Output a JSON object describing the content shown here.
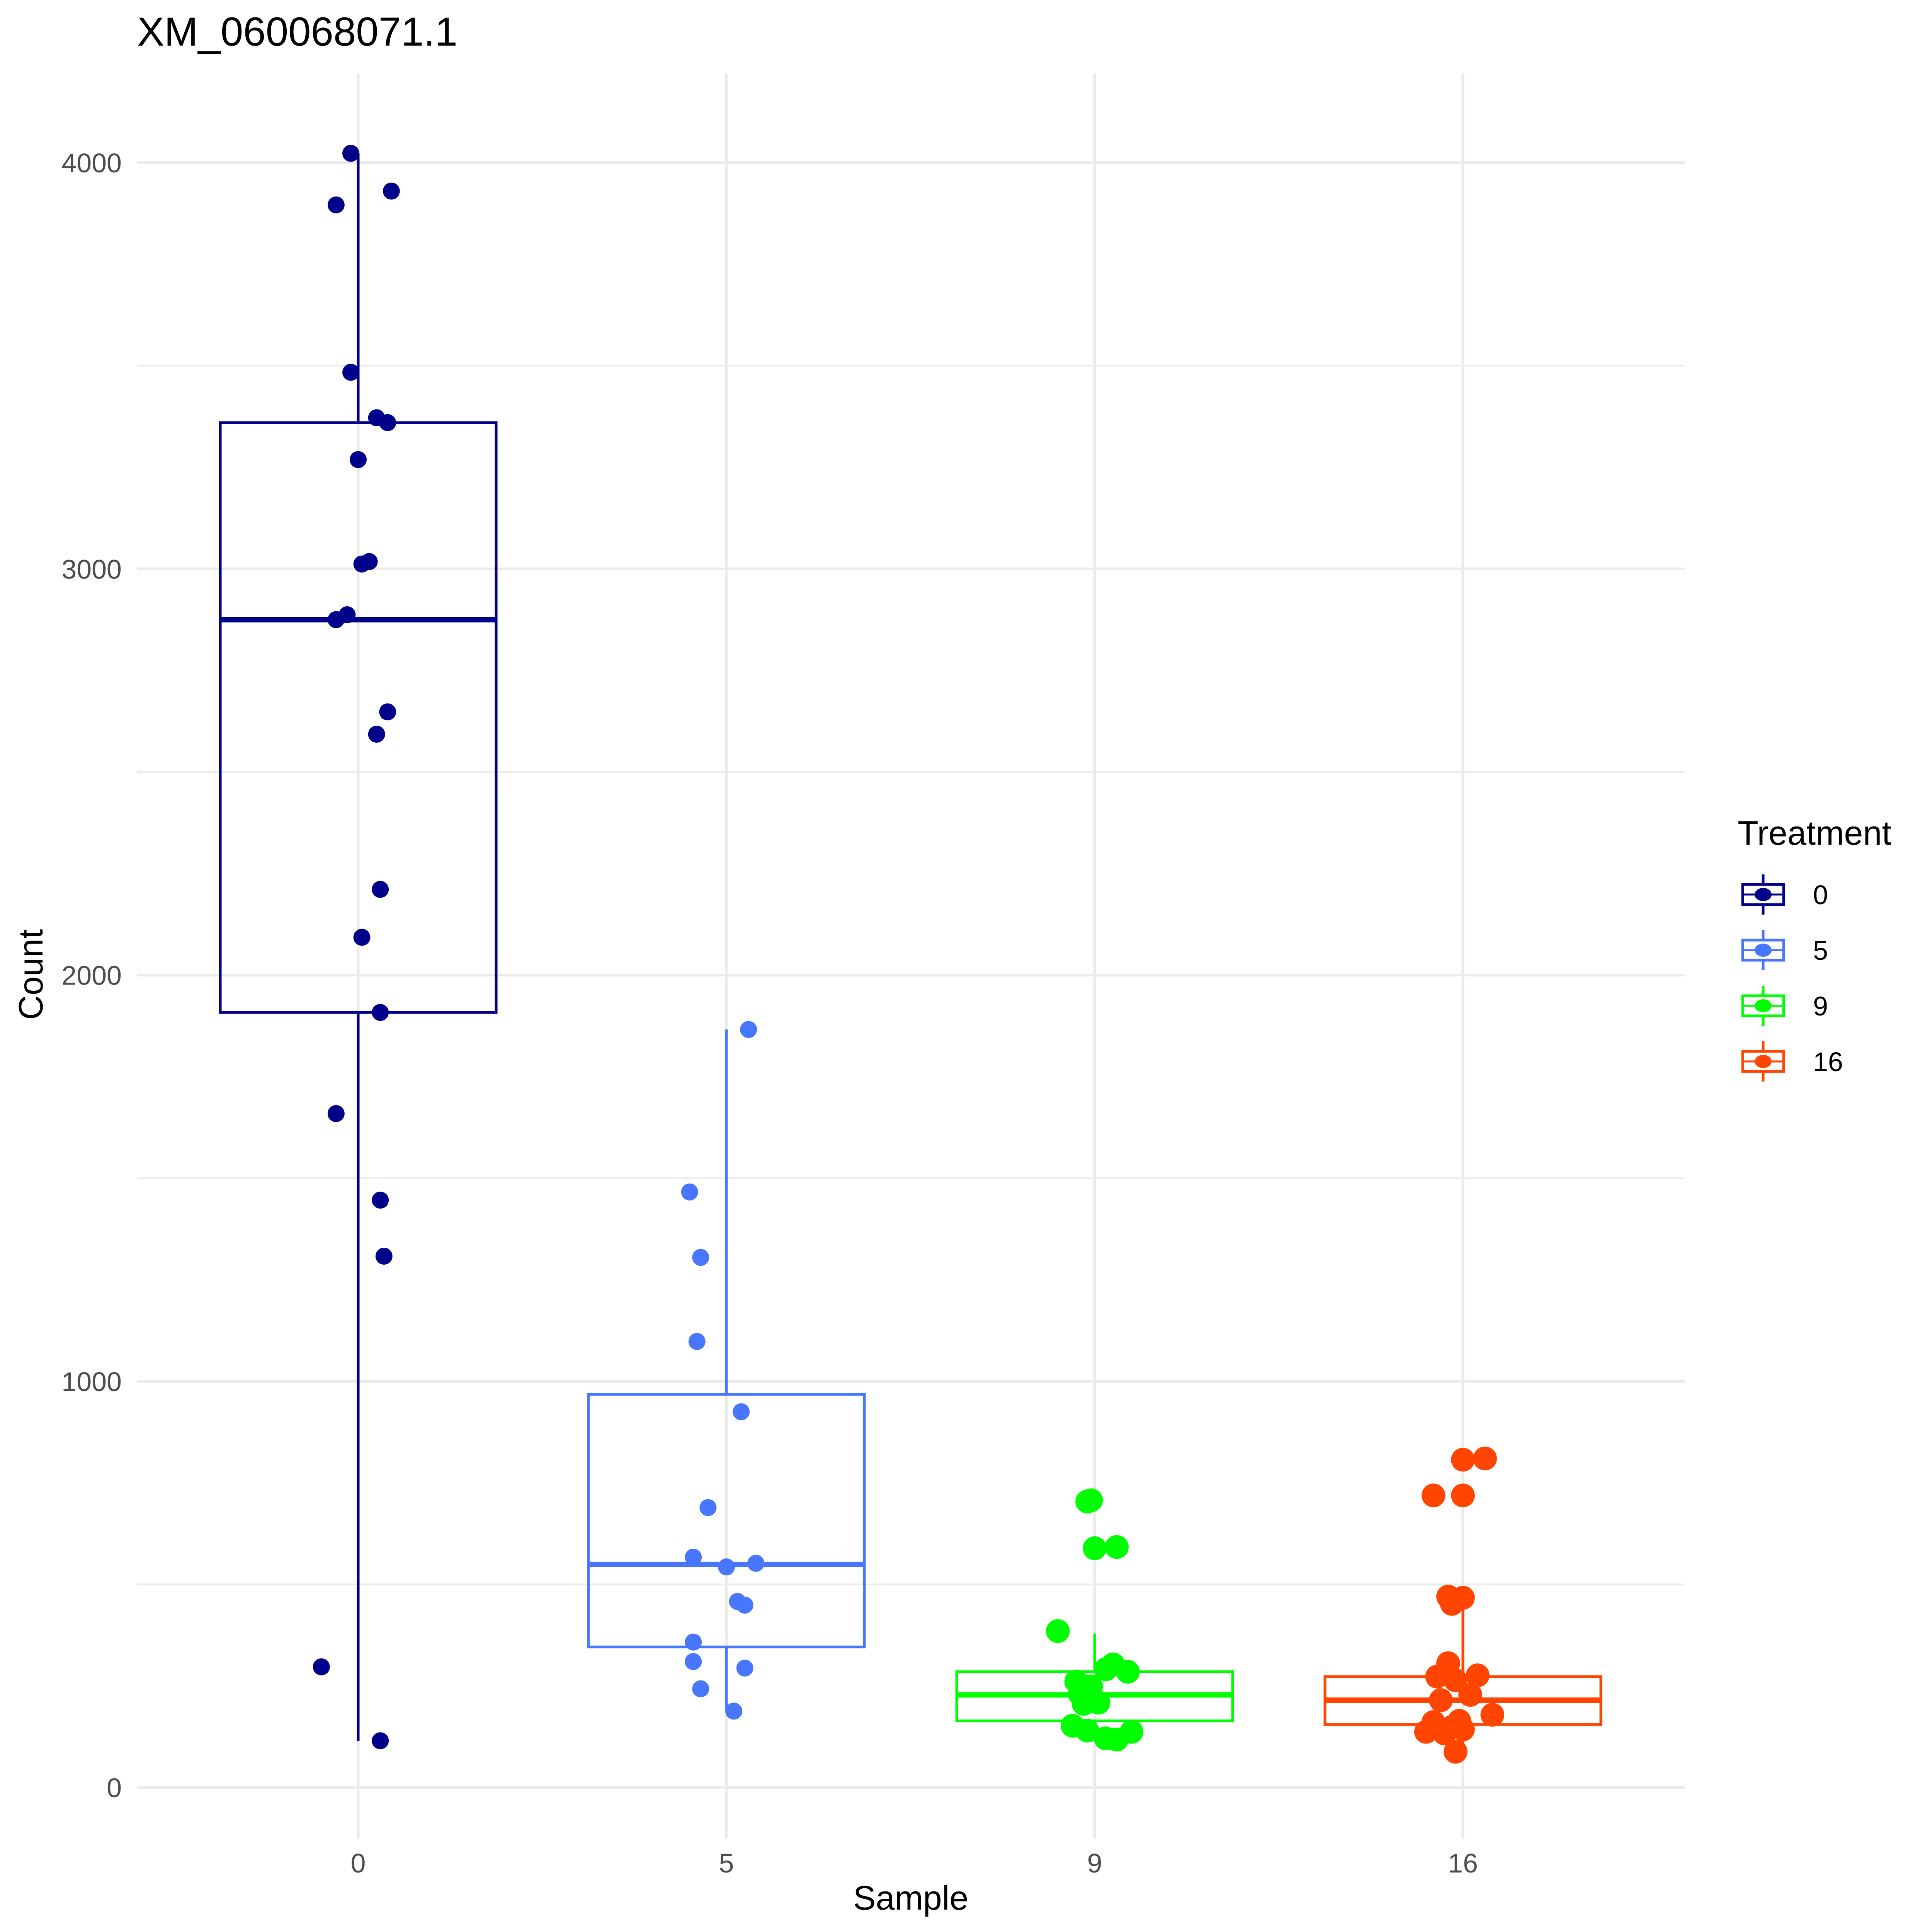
{
  "chart_data": {
    "type": "box",
    "title": "XM_060068071.1",
    "xlabel": "Sample",
    "ylabel": "Count",
    "ylim": [
      -120,
      4220
    ],
    "yticks": [
      0,
      1000,
      2000,
      3000,
      4000
    ],
    "ytick_labels": [
      "0",
      "1000",
      "2000",
      "3000",
      "4000"
    ],
    "categories": [
      "0",
      "5",
      "9",
      "16"
    ],
    "grid": true,
    "legend": {
      "title": "Treatment",
      "position": "right",
      "entries": [
        "0",
        "5",
        "9",
        "16"
      ]
    },
    "series": [
      {
        "name": "0",
        "color": "#00008B",
        "box": {
          "lower_whisker": 115,
          "q1": 1908,
          "median": 2875,
          "q3": 3360,
          "upper_whisker": 4023
        },
        "points": [
          4023,
          3930,
          3896,
          3484,
          3372,
          3360,
          3269,
          3018,
          3012,
          2887,
          2875,
          2648,
          2593,
          2211,
          2093,
          1908,
          1659,
          1446,
          1308,
          297,
          115
        ],
        "jitter": [
          -0.02,
          0.09,
          -0.06,
          -0.02,
          0.05,
          0.08,
          0.0,
          0.03,
          0.01,
          -0.03,
          -0.06,
          0.08,
          0.05,
          0.06,
          0.01,
          0.06,
          -0.06,
          0.06,
          0.07,
          -0.1,
          0.06
        ]
      },
      {
        "name": "5",
        "color": "#4876FF",
        "box": {
          "lower_whisker": 188,
          "q1": 346,
          "median": 549,
          "q3": 968,
          "upper_whisker": 1866
        },
        "points": [
          1866,
          1466,
          1305,
          1098,
          925,
          689,
          567,
          552,
          543,
          458,
          449,
          358,
          310,
          294,
          243,
          188
        ],
        "jitter": [
          0.06,
          -0.1,
          -0.07,
          -0.08,
          0.04,
          -0.05,
          -0.09,
          0.08,
          0.0,
          0.03,
          0.05,
          -0.09,
          -0.09,
          0.05,
          -0.07,
          0.02
        ]
      },
      {
        "name": "9",
        "color": "#00FF00",
        "box": {
          "lower_whisker": 118,
          "q1": 164,
          "median": 228,
          "q3": 285,
          "upper_whisker": 379
        },
        "points": [
          707,
          704,
          592,
          589,
          385,
          303,
          291,
          285,
          261,
          249,
          230,
          209,
          206,
          152,
          140,
          137,
          121,
          118
        ],
        "jitter": [
          -0.01,
          -0.02,
          0.06,
          0.0,
          -0.1,
          0.05,
          0.03,
          0.09,
          -0.05,
          -0.01,
          -0.04,
          0.01,
          -0.03,
          -0.06,
          -0.02,
          0.1,
          0.03,
          0.06
        ],
        "point_size": 1.4
      },
      {
        "name": "16",
        "color": "#FF4500",
        "box": {
          "lower_whisker": 88,
          "q1": 155,
          "median": 215,
          "q3": 273,
          "upper_whisker": 440
        },
        "points": [
          810,
          807,
          719,
          719,
          470,
          467,
          452,
          306,
          276,
          273,
          264,
          228,
          215,
          179,
          164,
          161,
          149,
          143,
          137,
          133,
          88
        ],
        "jitter": [
          0.06,
          0.0,
          -0.08,
          0.0,
          -0.04,
          0.0,
          -0.03,
          -0.04,
          0.04,
          -0.07,
          -0.02,
          0.02,
          -0.06,
          0.08,
          -0.01,
          -0.08,
          -0.03,
          0.0,
          -0.1,
          -0.05,
          -0.02
        ],
        "point_size": 1.4
      }
    ]
  }
}
